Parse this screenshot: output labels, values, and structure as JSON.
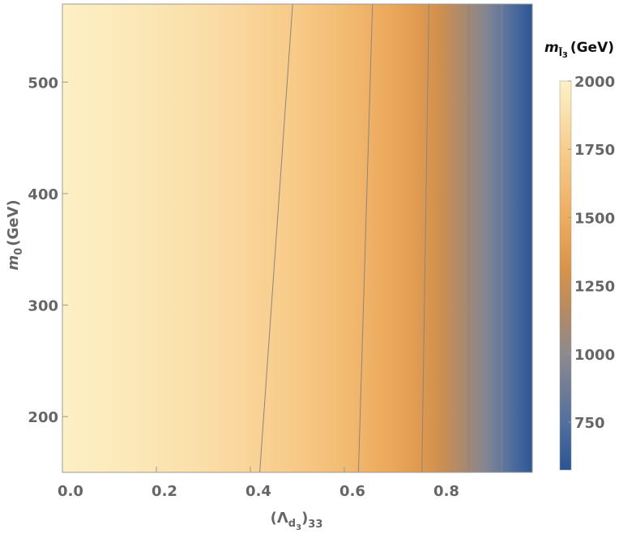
{
  "chart_data": {
    "type": "density",
    "x_label_parts": [
      "(Λ",
      "d",
      "3",
      ")",
      "33"
    ],
    "y_label_parts": [
      "m",
      "0",
      "(GeV)"
    ],
    "colorbar_title_parts": [
      "m",
      "l̃",
      "3",
      "(GeV)"
    ],
    "x": [
      0,
      0.1,
      0.2,
      0.3,
      0.4,
      0.5,
      0.6,
      0.7,
      0.75,
      0.8,
      0.85,
      0.9,
      0.95,
      1.0
    ],
    "values": [
      1990,
      1960,
      1920,
      1870,
      1800,
      1720,
      1610,
      1470,
      1380,
      1270,
      1120,
      960,
      760,
      580
    ],
    "xlim": [
      0,
      1.0
    ],
    "ylim": [
      150,
      570
    ],
    "xticks": [
      {
        "value": 0,
        "label": "0.0"
      },
      0.2,
      0.4,
      0.6,
      0.8
    ],
    "yticks": [
      200,
      300,
      400,
      500
    ],
    "contours": [
      {
        "x": [
          0.42,
          0.49
        ],
        "y": [
          150,
          570
        ]
      },
      {
        "x": [
          0.63,
          0.66
        ],
        "y": [
          150,
          570
        ]
      },
      {
        "x": [
          0.765,
          0.78
        ],
        "y": [
          150,
          570
        ]
      },
      {
        "x": [
          0.865,
          0.865
        ],
        "y": [
          150,
          570
        ]
      },
      {
        "x": [
          0.935,
          0.935
        ],
        "y": [
          150,
          570
        ]
      }
    ],
    "contour_color": "#8a8580",
    "clim": [
      575,
      2000
    ],
    "cticks": [
      750,
      1000,
      1250,
      1500,
      1750,
      2000
    ],
    "colorscale": [
      {
        "value": 575,
        "color": "#2b5494"
      },
      {
        "value": 750,
        "color": "#52709f"
      },
      {
        "value": 1000,
        "color": "#8d8a8e"
      },
      {
        "value": 1150,
        "color": "#b48a62"
      },
      {
        "value": 1300,
        "color": "#d89248"
      },
      {
        "value": 1500,
        "color": "#eeac5e"
      },
      {
        "value": 1750,
        "color": "#f8cd8c"
      },
      {
        "value": 2000,
        "color": "#fdf1c6"
      }
    ]
  }
}
